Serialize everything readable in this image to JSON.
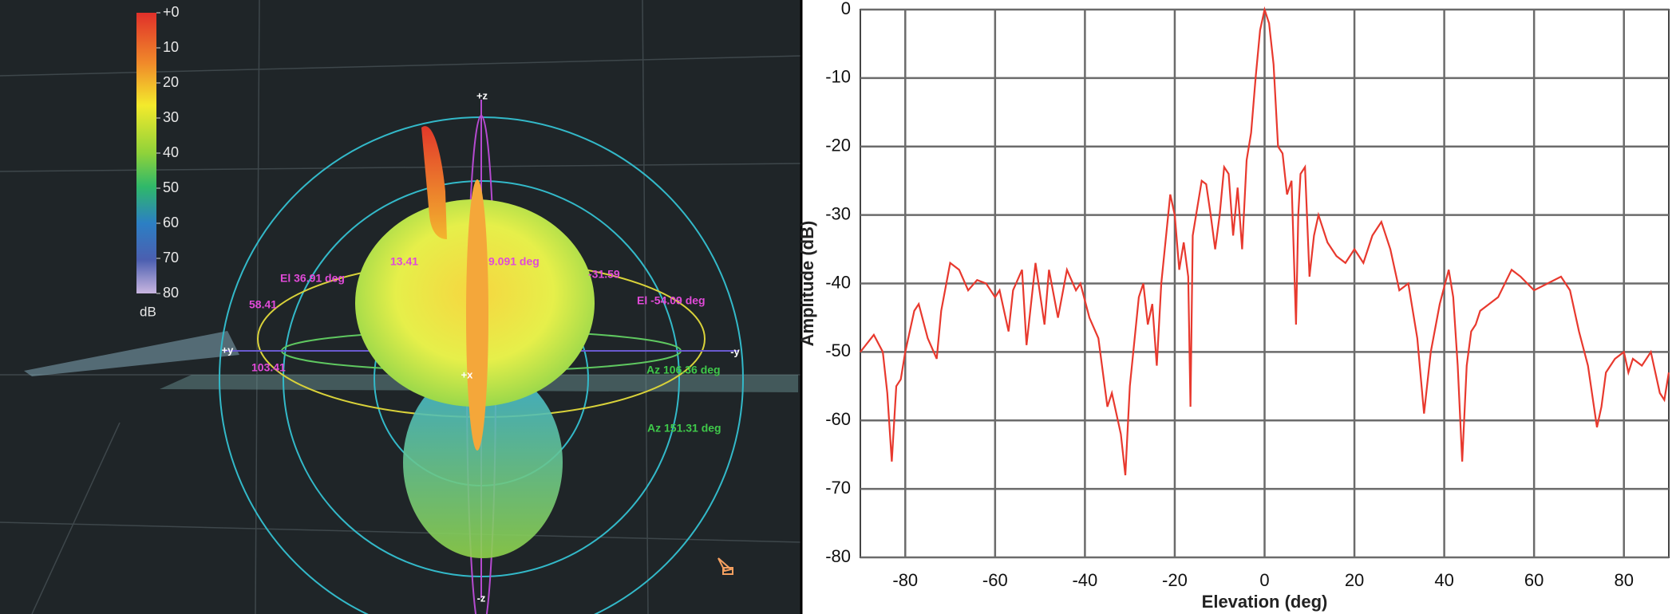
{
  "view": {
    "colorbar": {
      "ticks": [
        {
          "value": 0,
          "label": "+0"
        },
        10,
        20,
        30,
        40,
        50,
        60,
        70,
        80
      ],
      "unit": "dB"
    },
    "axis_labels": [
      "+z",
      "-z",
      "+y",
      "-y",
      "+x"
    ],
    "annotations": [
      "13.41",
      "9.091 deg",
      "-31.59",
      "El 36.91 deg",
      "58.41",
      "103.41",
      "El -54.09 deg",
      "Az 106.36 deg",
      "Az 151.31 deg"
    ]
  },
  "chart_data": {
    "type": "line",
    "x_label": "Elevation (deg)",
    "y_label": "Amplitude (dB)",
    "xlim": [
      -90,
      90
    ],
    "xticks": [
      -80,
      -60,
      -40,
      -20,
      0,
      20,
      40,
      60,
      80
    ],
    "ylim": [
      -80,
      0
    ],
    "yticks": [
      0,
      -10,
      -20,
      -30,
      -40,
      -50,
      -60,
      -70,
      -80
    ],
    "grid": true,
    "x": [
      -90,
      -87,
      -85,
      -84,
      -83,
      -82,
      -81,
      -80,
      -78,
      -77,
      -75,
      -73,
      -72,
      -70,
      -68,
      -66,
      -64,
      -62,
      -60,
      -59,
      -57,
      -56,
      -54,
      -53,
      -51,
      -49,
      -48,
      -46,
      -44,
      -42,
      -41,
      -39,
      -37,
      -35,
      -34,
      -32,
      -31,
      -30,
      -28,
      -27,
      -26,
      -25,
      -24,
      -23,
      -21,
      -20,
      -19,
      -18,
      -17,
      -16.5,
      -16,
      -14,
      -13,
      -12,
      -11,
      -10,
      -9,
      -8,
      -7,
      -6,
      -5,
      -4,
      -3,
      -2,
      -1,
      0,
      1,
      2,
      3,
      4,
      5,
      6,
      7,
      7.5,
      8,
      9,
      10,
      11,
      12,
      14,
      16,
      18,
      20,
      22,
      24,
      26,
      28,
      30,
      32,
      34,
      35.5,
      37,
      39,
      41,
      42,
      43,
      44,
      45,
      46,
      47,
      48,
      50,
      52,
      55,
      57,
      60,
      63,
      66,
      68,
      70,
      72,
      74,
      75,
      76,
      78,
      80,
      81,
      82,
      84,
      86,
      88,
      89,
      90
    ],
    "series": [
      {
        "color": "#e8392e",
        "values": [
          -50,
          -47.5,
          -50,
          -56,
          -66,
          -55,
          -54,
          -50,
          -44,
          -43,
          -48,
          -51,
          -44,
          -37,
          -38,
          -41,
          -39.5,
          -40,
          -42,
          -41,
          -47,
          -41,
          -38,
          -49,
          -37,
          -46,
          -38,
          -45,
          -38,
          -41,
          -40,
          -45,
          -48,
          -58,
          -56,
          -62,
          -68,
          -55,
          -42,
          -40,
          -46,
          -43,
          -52,
          -40,
          -27,
          -30,
          -38,
          -34,
          -39,
          -58,
          -33,
          -25,
          -25.5,
          -30,
          -35,
          -30,
          -23,
          -24,
          -33,
          -26,
          -35,
          -22,
          -18,
          -10,
          -3,
          0,
          -2,
          -8,
          -20,
          -21,
          -27,
          -25,
          -46,
          -30,
          -24,
          -23,
          -39,
          -33,
          -30,
          -34,
          -36,
          -37,
          -35,
          -37,
          -33,
          -31,
          -35,
          -41,
          -40,
          -48,
          -59,
          -50,
          -43,
          -38,
          -42,
          -52,
          -66,
          -52,
          -47,
          -46,
          -44,
          -43,
          -42,
          -38,
          -39,
          -41,
          -40,
          -39,
          -41,
          -47,
          -52,
          -61,
          -58,
          -53,
          -51,
          -50,
          -53,
          -51,
          -52,
          -50,
          -56,
          -57,
          -53
        ]
      }
    ]
  }
}
